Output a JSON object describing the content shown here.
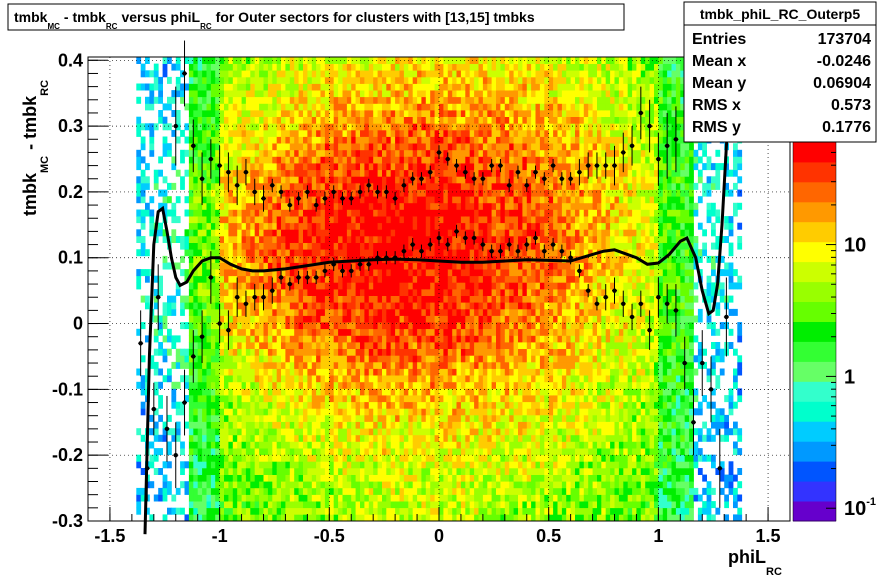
{
  "chart_data": {
    "type": "heatmap",
    "title_parts": [
      "tmbk",
      "MC",
      "- tmbk",
      "RC",
      "versus phiL",
      "RC",
      "for Outer sectors for clusters with [13,15] tmbks"
    ],
    "xlabel_main": "phiL",
    "xlabel_sub": "RC",
    "ylabel_parts": [
      "tmbk",
      "MC",
      "- tmbk",
      "RC"
    ],
    "xlim": [
      -1.6,
      1.6
    ],
    "ylim": [
      -0.3,
      0.405
    ],
    "x_ticks": [
      -1.5,
      -1,
      -0.5,
      0,
      0.5,
      1,
      1.5
    ],
    "x_tick_labels": [
      "-1.5",
      "-1",
      "-0.5",
      "0",
      "0.5",
      "1",
      "1.5"
    ],
    "y_ticks": [
      -0.3,
      -0.2,
      -0.1,
      0,
      0.1,
      0.2,
      0.3,
      0.4
    ],
    "y_tick_labels": [
      "-0.3",
      "-0.2",
      "-0.1",
      "0",
      "0.1",
      "0.2",
      "0.3",
      "0.4"
    ],
    "grid": true,
    "log_z": true,
    "z_range": [
      0.08,
      60
    ],
    "z_tick_values": [
      10,
      1,
      0.1
    ],
    "z_tick_main": [
      "10",
      "1",
      "10"
    ],
    "z_tick_exp": [
      "",
      "",
      "-1"
    ],
    "palette": [
      "#6600cc",
      "#3333ff",
      "#0055ff",
      "#0099ff",
      "#00ccff",
      "#00ffcc",
      "#33ffcc",
      "#66ff66",
      "#33ff33",
      "#00ee00",
      "#66ff00",
      "#99ff00",
      "#ccff00",
      "#ffff00",
      "#ffcc00",
      "#ff9900",
      "#ff6600",
      "#ff3300",
      "#ff0000"
    ],
    "stats": {
      "name": "tmbk_phiL_RC_Outerp5",
      "rows": [
        {
          "label": "Entries",
          "value": "173704"
        },
        {
          "label": "Mean x",
          "value": "-0.0246"
        },
        {
          "label": "Mean y",
          "value": "0.06904"
        },
        {
          "label": "RMS x",
          "value": "0.573"
        },
        {
          "label": "RMS y",
          "value": "0.1776"
        }
      ]
    },
    "profile_upper": {
      "x": [
        -1.36,
        -1.33,
        -1.3,
        -1.2,
        -1.16,
        -1.12,
        -1.08,
        -1.04,
        -1.0,
        -0.96,
        -0.92,
        -0.88,
        -0.84,
        -0.8,
        -0.76,
        -0.72,
        -0.68,
        -0.64,
        -0.6,
        -0.56,
        -0.52,
        -0.48,
        -0.44,
        -0.4,
        -0.36,
        -0.32,
        -0.28,
        -0.24,
        -0.2,
        -0.16,
        -0.12,
        -0.08,
        -0.04,
        0.0,
        0.04,
        0.08,
        0.12,
        0.16,
        0.2,
        0.24,
        0.28,
        0.32,
        0.36,
        0.4,
        0.44,
        0.48,
        0.52,
        0.56,
        0.6,
        0.64,
        0.68,
        0.72,
        0.76,
        0.8,
        0.84,
        0.88,
        0.92,
        0.96,
        1.0,
        1.04,
        1.08
      ],
      "y": [
        -0.03,
        -0.22,
        -0.13,
        0.3,
        0.38,
        0.27,
        0.22,
        0.25,
        0.24,
        0.23,
        0.21,
        0.23,
        0.2,
        0.19,
        0.21,
        0.2,
        0.18,
        0.19,
        0.2,
        0.18,
        0.19,
        0.2,
        0.19,
        0.19,
        0.2,
        0.21,
        0.2,
        0.2,
        0.19,
        0.21,
        0.22,
        0.22,
        0.23,
        0.26,
        0.25,
        0.24,
        0.23,
        0.22,
        0.22,
        0.24,
        0.24,
        0.21,
        0.23,
        0.21,
        0.23,
        0.22,
        0.24,
        0.22,
        0.22,
        0.23,
        0.24,
        0.24,
        0.24,
        0.24,
        0.26,
        0.27,
        0.32,
        0.3,
        0.25,
        0.27,
        0.28
      ],
      "err": [
        0.05,
        0.05,
        0.04,
        0.06,
        0.05,
        0.04,
        0.04,
        0.03,
        0.03,
        0.03,
        0.03,
        0.02,
        0.02,
        0.02,
        0.01,
        0.01,
        0.01,
        0.01,
        0.01,
        0.01,
        0.01,
        0.01,
        0.01,
        0.01,
        0.01,
        0.01,
        0.01,
        0.01,
        0.01,
        0.01,
        0.01,
        0.01,
        0.01,
        0.01,
        0.01,
        0.01,
        0.01,
        0.01,
        0.01,
        0.01,
        0.01,
        0.01,
        0.01,
        0.01,
        0.01,
        0.01,
        0.01,
        0.01,
        0.01,
        0.02,
        0.02,
        0.02,
        0.02,
        0.03,
        0.03,
        0.03,
        0.04,
        0.04,
        0.04,
        0.05,
        0.05
      ]
    },
    "profile_lower": {
      "x": [
        -1.28,
        -1.24,
        -1.2,
        -1.16,
        -1.12,
        -1.08,
        -1.04,
        -1.0,
        -0.96,
        -0.92,
        -0.88,
        -0.84,
        -0.8,
        -0.76,
        -0.72,
        -0.68,
        -0.64,
        -0.6,
        -0.56,
        -0.52,
        -0.48,
        -0.44,
        -0.4,
        -0.36,
        -0.32,
        -0.28,
        -0.24,
        -0.2,
        -0.16,
        -0.12,
        -0.08,
        -0.04,
        0.0,
        0.04,
        0.08,
        0.12,
        0.16,
        0.2,
        0.24,
        0.28,
        0.32,
        0.36,
        0.4,
        0.44,
        0.48,
        0.52,
        0.56,
        0.6,
        0.64,
        0.68,
        0.72,
        0.76,
        0.8,
        0.84,
        0.88,
        0.92,
        0.96,
        1.0,
        1.04,
        1.08,
        1.12,
        1.16,
        1.2,
        1.24,
        1.28,
        1.31
      ],
      "y": [
        0.04,
        -0.16,
        -0.2,
        -0.12,
        -0.05,
        -0.02,
        0.07,
        0.0,
        -0.01,
        0.04,
        0.03,
        0.04,
        0.04,
        0.05,
        0.07,
        0.06,
        0.07,
        0.07,
        0.07,
        0.08,
        0.09,
        0.08,
        0.08,
        0.09,
        0.09,
        0.1,
        0.1,
        0.1,
        0.11,
        0.12,
        0.11,
        0.12,
        0.13,
        0.12,
        0.14,
        0.13,
        0.13,
        0.12,
        0.11,
        0.11,
        0.12,
        0.11,
        0.12,
        0.13,
        0.11,
        0.12,
        0.11,
        0.1,
        0.08,
        0.05,
        0.03,
        0.04,
        0.05,
        0.03,
        0.01,
        0.03,
        -0.01,
        0.04,
        0.03,
        0.02,
        -0.06,
        -0.15,
        -0.06,
        -0.1,
        -0.22,
        0.01
      ],
      "err": [
        0.05,
        0.05,
        0.05,
        0.05,
        0.04,
        0.04,
        0.04,
        0.03,
        0.03,
        0.03,
        0.02,
        0.02,
        0.02,
        0.02,
        0.01,
        0.01,
        0.01,
        0.01,
        0.01,
        0.01,
        0.01,
        0.01,
        0.01,
        0.01,
        0.01,
        0.01,
        0.01,
        0.01,
        0.01,
        0.01,
        0.01,
        0.01,
        0.01,
        0.01,
        0.01,
        0.01,
        0.01,
        0.01,
        0.01,
        0.01,
        0.01,
        0.01,
        0.01,
        0.01,
        0.01,
        0.01,
        0.01,
        0.01,
        0.01,
        0.01,
        0.01,
        0.02,
        0.02,
        0.02,
        0.02,
        0.02,
        0.03,
        0.03,
        0.03,
        0.04,
        0.04,
        0.05,
        0.05,
        0.05,
        0.06,
        0.06
      ]
    },
    "fit_curve": {
      "x": [
        -1.34,
        -1.32,
        -1.3,
        -1.28,
        -1.26,
        -1.24,
        -1.22,
        -1.2,
        -1.18,
        -1.15,
        -1.12,
        -1.08,
        -1.04,
        -1.0,
        -0.95,
        -0.9,
        -0.85,
        -0.8,
        -0.7,
        -0.6,
        -0.5,
        -0.4,
        -0.3,
        -0.2,
        -0.1,
        0.0,
        0.1,
        0.2,
        0.3,
        0.4,
        0.5,
        0.6,
        0.7,
        0.75,
        0.8,
        0.9,
        0.95,
        1.0,
        1.05,
        1.1,
        1.13,
        1.17,
        1.2,
        1.23,
        1.25,
        1.27,
        1.29,
        1.31,
        1.33,
        1.35
      ],
      "y": [
        -0.32,
        -0.05,
        0.12,
        0.17,
        0.175,
        0.14,
        0.1,
        0.07,
        0.058,
        0.063,
        0.08,
        0.095,
        0.1,
        0.1,
        0.09,
        0.083,
        0.08,
        0.08,
        0.083,
        0.088,
        0.093,
        0.095,
        0.097,
        0.098,
        0.097,
        0.095,
        0.093,
        0.093,
        0.095,
        0.097,
        0.096,
        0.095,
        0.105,
        0.11,
        0.112,
        0.1,
        0.09,
        0.092,
        0.105,
        0.125,
        0.13,
        0.1,
        0.05,
        0.015,
        0.02,
        0.06,
        0.15,
        0.27,
        0.36,
        0.42
      ]
    }
  }
}
